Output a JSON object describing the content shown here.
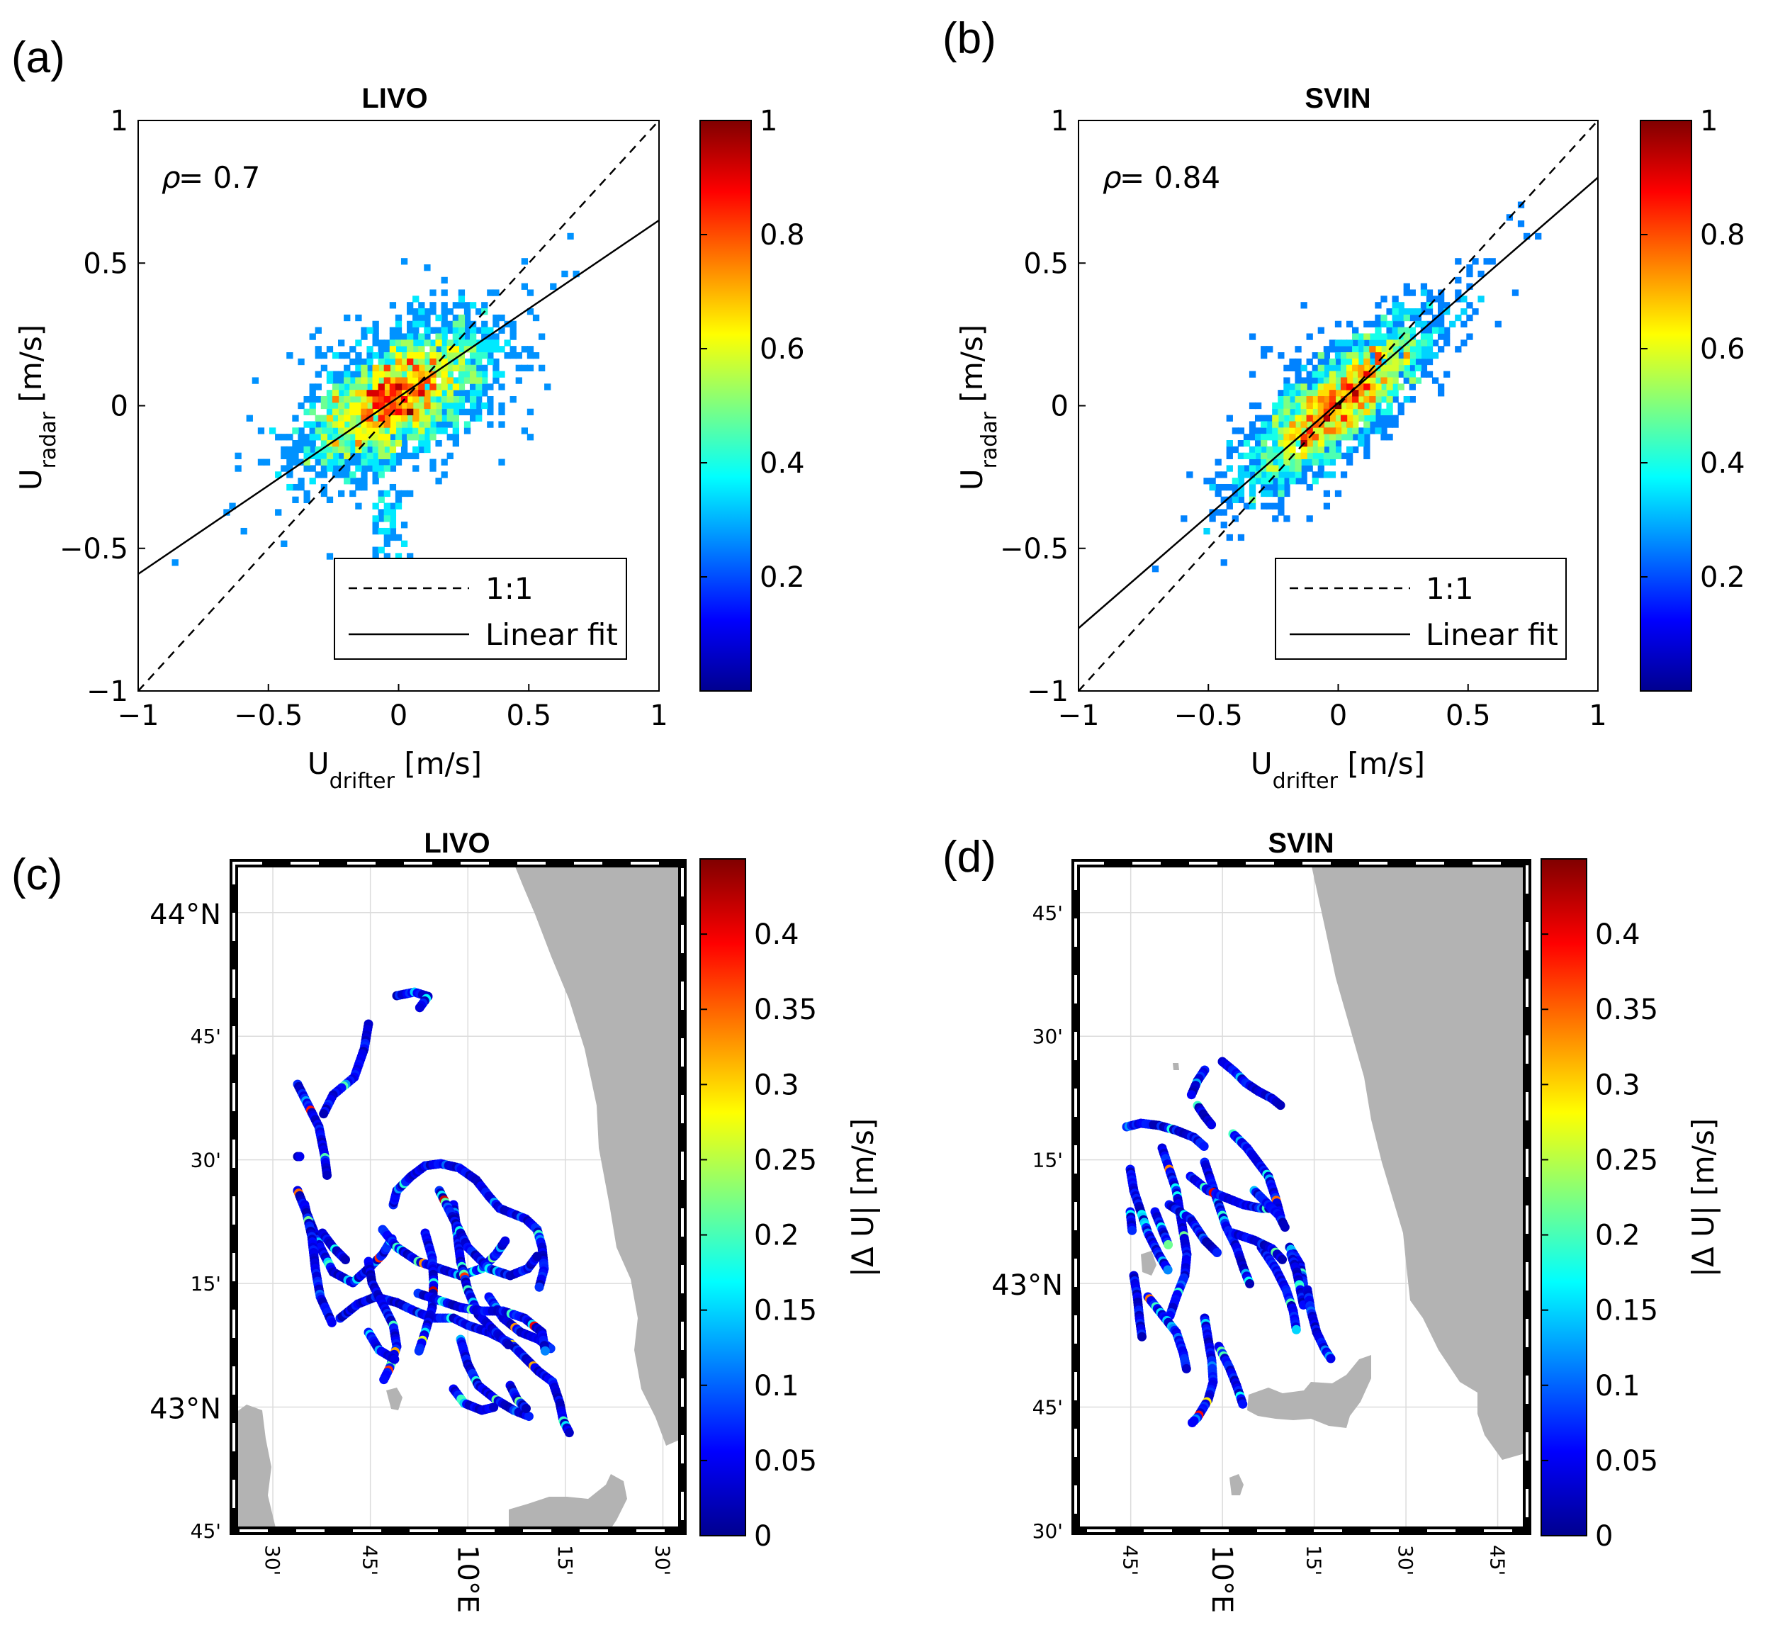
{
  "figure": {
    "panel_letters": [
      "(a)",
      "(b)",
      "(c)",
      "(d)"
    ]
  },
  "chart_data": [
    {
      "panel": "(a)",
      "type": "scatter",
      "title": "LIVO",
      "xlabel": "U",
      "xlabel_sub": "drifter",
      "xlabel_unit": " [m/s]",
      "ylabel": "U",
      "ylabel_sub": "radar",
      "ylabel_unit": " [m/s]",
      "xlim": [
        -1,
        1
      ],
      "ylim": [
        -1,
        1
      ],
      "xticks": [
        -1,
        -0.5,
        0,
        0.5,
        1
      ],
      "xticklabels": [
        "−1",
        "−0.5",
        "0",
        "0.5",
        "1"
      ],
      "yticks": [
        -1,
        -0.5,
        0,
        0.5,
        1
      ],
      "yticklabels": [
        "−1",
        "−0.5",
        "0",
        "0.5",
        "1"
      ],
      "rho_label": "ρ",
      "rho_text": " = 0.7",
      "rho": 0.7,
      "fit": {
        "slope": 0.62,
        "intercept": 0.03
      },
      "density_spread": {
        "major_sd": 0.19,
        "minor_sd": 0.09,
        "tail": "south"
      },
      "legend": [
        {
          "label": "1:1",
          "style": "dashed"
        },
        {
          "label": "Linear fit",
          "style": "solid"
        }
      ],
      "colorbar": {
        "min": 0,
        "max": 1,
        "ticks": [
          0.2,
          0.4,
          0.6,
          0.8,
          1
        ],
        "ticklabels": [
          "0.2",
          "0.4",
          "0.6",
          "0.8",
          "1"
        ]
      }
    },
    {
      "panel": "(b)",
      "type": "scatter",
      "title": "SVIN",
      "xlabel": "U",
      "xlabel_sub": "drifter",
      "xlabel_unit": " [m/s]",
      "ylabel": "U",
      "ylabel_sub": "radar",
      "ylabel_unit": " [m/s]",
      "xlim": [
        -1,
        1
      ],
      "ylim": [
        -1,
        1
      ],
      "xticks": [
        -1,
        -0.5,
        0,
        0.5,
        1
      ],
      "xticklabels": [
        "−1",
        "−0.5",
        "0",
        "0.5",
        "1"
      ],
      "yticks": [
        -1,
        -0.5,
        0,
        0.5,
        1
      ],
      "yticklabels": [
        "−1",
        "−0.5",
        "0",
        "0.5",
        "1"
      ],
      "rho_label": "ρ",
      "rho_text": " = 0.84",
      "rho": 0.84,
      "fit": {
        "slope": 0.79,
        "intercept": 0.01
      },
      "density_spread": {
        "major_sd": 0.21,
        "minor_sd": 0.07,
        "tail": "none"
      },
      "legend": [
        {
          "label": "1:1",
          "style": "dashed"
        },
        {
          "label": "Linear fit",
          "style": "solid"
        }
      ],
      "colorbar": {
        "min": 0,
        "max": 1,
        "ticks": [
          0.2,
          0.4,
          0.6,
          0.8,
          1
        ],
        "ticklabels": [
          "0.2",
          "0.4",
          "0.6",
          "0.8",
          "1"
        ]
      }
    },
    {
      "panel": "(c)",
      "type": "map",
      "title": "LIVO",
      "lon_range": [
        9.4,
        10.55
      ],
      "lat_range": [
        42.75,
        44.1
      ],
      "lat_ticks": [
        42.75,
        43.0,
        43.25,
        43.5,
        43.75,
        44.0
      ],
      "lat_ticklabels": [
        "45'",
        "43°N",
        "15'",
        "30'",
        "45'",
        "44°N"
      ],
      "lon_ticks": [
        9.5,
        9.75,
        10.0,
        10.25,
        10.5
      ],
      "lon_ticklabels": [
        "30'",
        "45'",
        "10°E",
        "15'",
        "30'"
      ],
      "colorbar": {
        "min": 0,
        "max": 0.45,
        "label": "|Δ U| [m/s]",
        "ticks": [
          0,
          0.05,
          0.1,
          0.15,
          0.2,
          0.25,
          0.3,
          0.35,
          0.4
        ],
        "ticklabels": [
          "0",
          "0.05",
          "0.1",
          "0.15",
          "0.2",
          "0.25",
          "0.3",
          "0.35",
          "0.4"
        ]
      }
    },
    {
      "panel": "(d)",
      "type": "map",
      "title": "SVIN",
      "lon_range": [
        9.6,
        10.83
      ],
      "lat_range": [
        42.5,
        43.85
      ],
      "lat_ticks": [
        42.5,
        42.75,
        43.0,
        43.25,
        43.5,
        43.75
      ],
      "lat_ticklabels": [
        "30'",
        "45'",
        "43°N",
        "15'",
        "30'",
        "45'"
      ],
      "lon_ticks": [
        9.75,
        10.0,
        10.25,
        10.5,
        10.75
      ],
      "lon_ticklabels": [
        "45'",
        "10°E",
        "15'",
        "30'",
        "45'"
      ],
      "colorbar": {
        "min": 0,
        "max": 0.45,
        "label": "|Δ U| [m/s]",
        "ticks": [
          0,
          0.05,
          0.1,
          0.15,
          0.2,
          0.25,
          0.3,
          0.35,
          0.4
        ],
        "ticklabels": [
          "0",
          "0.05",
          "0.1",
          "0.15",
          "0.2",
          "0.25",
          "0.3",
          "0.35",
          "0.4"
        ]
      }
    }
  ]
}
